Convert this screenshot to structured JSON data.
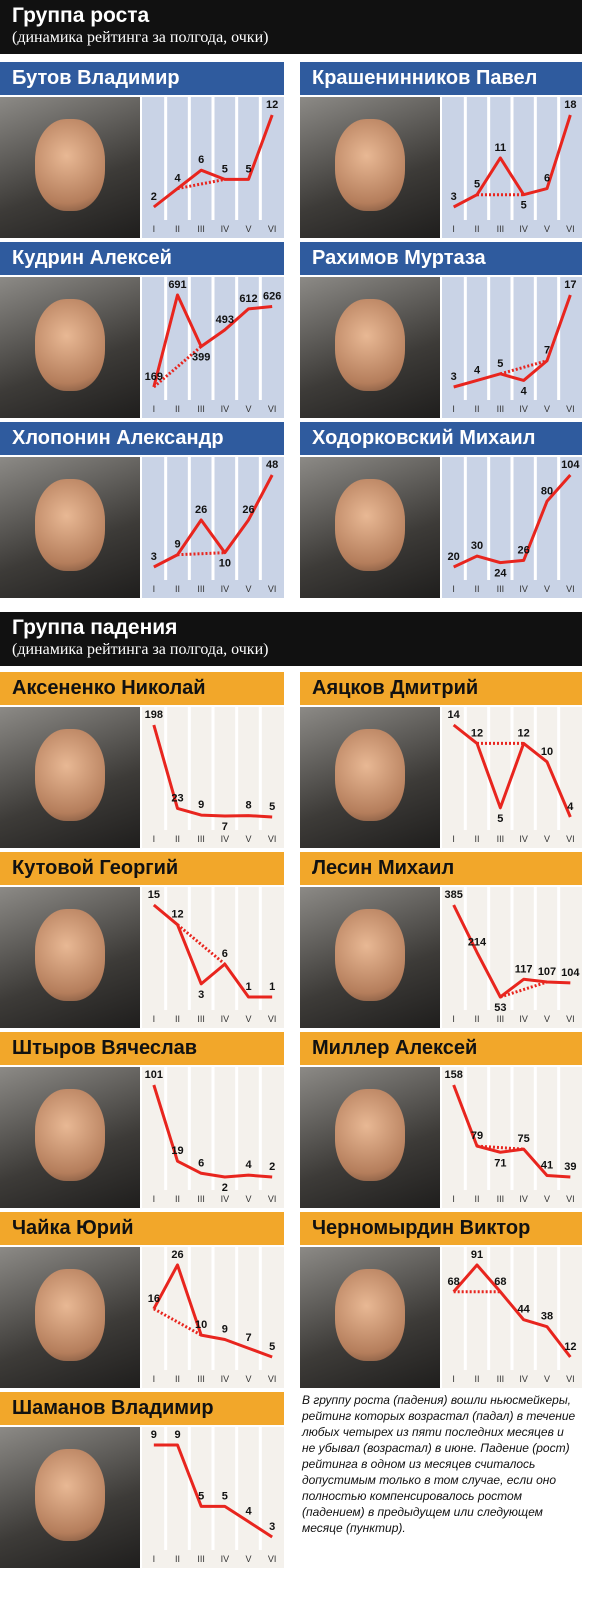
{
  "sections": [
    {
      "title": "Группа роста",
      "subtitle": "(динамика рейтинга за полгода, очки)"
    },
    {
      "title": "Группа падения",
      "subtitle": "(динамика рейтинга за полгода, очки)"
    }
  ],
  "note": "В группу роста (падения) вошли ньюсмейкеры, рейтинг которых возрастал (падал) в течение любых четырех из пяти последних месяцев и не убывал (возрастал) в июне. Падение (рост) рейтинга в одном из месяцев считалось допустимым только в том случае, если оно полностью компенсировалось ростом (падением) в предыдущем или следующем месяце (пунктир).",
  "chart_data": [
    {
      "type": "line",
      "title": "Бутов Владимир",
      "categories": [
        "I",
        "II",
        "III",
        "IV",
        "V",
        "VI"
      ],
      "values": [
        2,
        4,
        6,
        5,
        5,
        12
      ],
      "dashed_segment": [
        1,
        3
      ],
      "color": "#e8251e",
      "header_color": "#2f5b9e",
      "panel_color": "#c9d3e6"
    },
    {
      "type": "line",
      "title": "Крашенинников Павел",
      "categories": [
        "I",
        "II",
        "III",
        "IV",
        "V",
        "VI"
      ],
      "values": [
        3,
        5,
        11,
        5,
        6,
        18
      ],
      "dashed_segment": [
        1,
        3
      ],
      "color": "#e8251e",
      "header_color": "#2f5b9e",
      "panel_color": "#c9d3e6"
    },
    {
      "type": "line",
      "title": "Кудрин Алексей",
      "categories": [
        "I",
        "II",
        "III",
        "IV",
        "V",
        "VI"
      ],
      "values": [
        169,
        691,
        399,
        493,
        612,
        626
      ],
      "dashed_segment": [
        0,
        2
      ],
      "color": "#e8251e",
      "header_color": "#2f5b9e",
      "panel_color": "#c9d3e6"
    },
    {
      "type": "line",
      "title": "Рахимов Муртаза",
      "categories": [
        "I",
        "II",
        "III",
        "IV",
        "V",
        "VI"
      ],
      "values": [
        3,
        4,
        5,
        4,
        7,
        17
      ],
      "dashed_segment": [
        2,
        4
      ],
      "color": "#e8251e",
      "header_color": "#2f5b9e",
      "panel_color": "#c9d3e6"
    },
    {
      "type": "line",
      "title": "Хлопонин Александр",
      "categories": [
        "I",
        "II",
        "III",
        "IV",
        "V",
        "VI"
      ],
      "values": [
        3,
        9,
        26,
        10,
        26,
        48
      ],
      "dashed_segment": [
        1,
        3
      ],
      "color": "#e8251e",
      "header_color": "#2f5b9e",
      "panel_color": "#c9d3e6"
    },
    {
      "type": "line",
      "title": "Ходорковский Михаил",
      "categories": [
        "I",
        "II",
        "III",
        "IV",
        "V",
        "VI"
      ],
      "values": [
        20,
        30,
        24,
        26,
        80,
        104
      ],
      "color": "#e8251e",
      "header_color": "#2f5b9e",
      "panel_color": "#c9d3e6"
    },
    {
      "type": "line",
      "title": "Аксененко Николай",
      "categories": [
        "I",
        "II",
        "III",
        "IV",
        "V",
        "VI"
      ],
      "values": [
        198,
        23,
        9,
        7,
        8,
        5
      ],
      "color": "#e8251e",
      "header_color": "#f2a72a",
      "panel_color": "#f4f1ec"
    },
    {
      "type": "line",
      "title": "Аяцков Дмитрий",
      "categories": [
        "I",
        "II",
        "III",
        "IV",
        "V",
        "VI"
      ],
      "values": [
        14,
        12,
        5,
        12,
        10,
        4
      ],
      "dashed_segment": [
        1,
        3
      ],
      "color": "#e8251e",
      "header_color": "#f2a72a",
      "panel_color": "#f4f1ec"
    },
    {
      "type": "line",
      "title": "Кутовой Георгий",
      "categories": [
        "I",
        "II",
        "III",
        "IV",
        "V",
        "VI"
      ],
      "values": [
        15,
        12,
        3,
        6,
        1,
        1
      ],
      "dashed_segment": [
        1,
        3
      ],
      "color": "#e8251e",
      "header_color": "#f2a72a",
      "panel_color": "#f4f1ec"
    },
    {
      "type": "line",
      "title": "Лесин Михаил",
      "categories": [
        "I",
        "II",
        "III",
        "IV",
        "V",
        "VI"
      ],
      "values": [
        385,
        214,
        53,
        117,
        107,
        104
      ],
      "dashed_segment": [
        2,
        4
      ],
      "color": "#e8251e",
      "header_color": "#f2a72a",
      "panel_color": "#f4f1ec"
    },
    {
      "type": "line",
      "title": "Штыров Вячеслав",
      "categories": [
        "I",
        "II",
        "III",
        "IV",
        "V",
        "VI"
      ],
      "values": [
        101,
        19,
        6,
        2,
        4,
        2
      ],
      "color": "#e8251e",
      "header_color": "#f2a72a",
      "panel_color": "#f4f1ec"
    },
    {
      "type": "line",
      "title": "Миллер Алексей",
      "categories": [
        "I",
        "II",
        "III",
        "IV",
        "V",
        "VI"
      ],
      "values": [
        158,
        79,
        71,
        75,
        41,
        39
      ],
      "dashed_segment": [
        1,
        3
      ],
      "color": "#e8251e",
      "header_color": "#f2a72a",
      "panel_color": "#f4f1ec"
    },
    {
      "type": "line",
      "title": "Чайка Юрий",
      "categories": [
        "I",
        "II",
        "III",
        "IV",
        "V",
        "VI"
      ],
      "values": [
        16,
        26,
        10,
        9,
        7,
        5
      ],
      "dashed_segment": [
        0,
        2
      ],
      "color": "#e8251e",
      "header_color": "#f2a72a",
      "panel_color": "#f4f1ec"
    },
    {
      "type": "line",
      "title": "Черномырдин Виктор",
      "categories": [
        "I",
        "II",
        "III",
        "IV",
        "V",
        "VI"
      ],
      "values": [
        68,
        91,
        68,
        44,
        38,
        12
      ],
      "dashed_segment": [
        0,
        2
      ],
      "color": "#e8251e",
      "header_color": "#f2a72a",
      "panel_color": "#f4f1ec"
    },
    {
      "type": "line",
      "title": "Шаманов Владимир",
      "categories": [
        "I",
        "II",
        "III",
        "IV",
        "V",
        "VI"
      ],
      "values": [
        9,
        9,
        5,
        5,
        4,
        3
      ],
      "color": "#e8251e",
      "header_color": "#f2a72a",
      "panel_color": "#f4f1ec"
    }
  ]
}
